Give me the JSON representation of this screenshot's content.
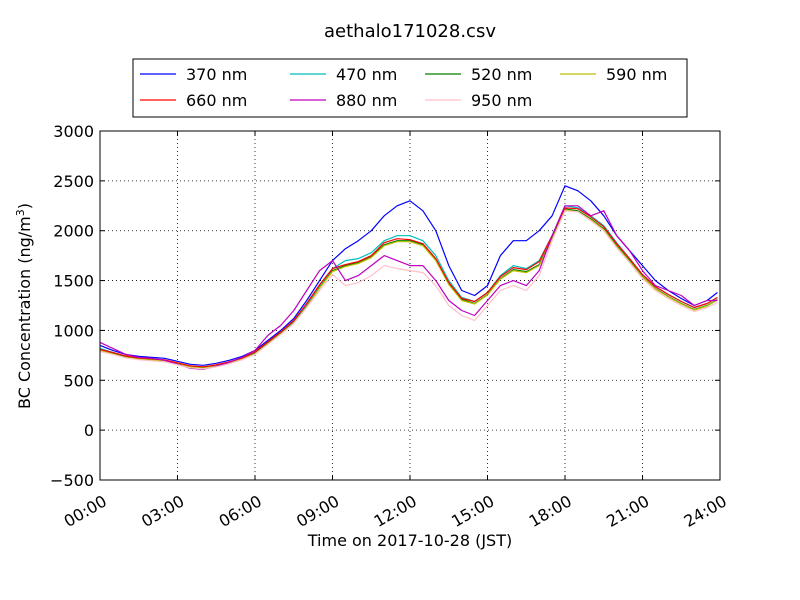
{
  "chart_data": {
    "type": "line",
    "title": "aethalo171028.csv",
    "xlabel": "Time on 2017-10-28 (JST)",
    "ylabel": "BC Concentration (ng/m³)",
    "ylabel_base": "BC Concentration (ng/m",
    "ylabel_sup": "3",
    "ylabel_end": ")",
    "x_unit": "hours",
    "xlim": [
      0,
      24
    ],
    "ylim": [
      -500,
      3000
    ],
    "grid": true,
    "legend_position": "top-center",
    "legend_columns": 4,
    "x_ticks": [
      0,
      3,
      6,
      9,
      12,
      15,
      18,
      21,
      24
    ],
    "x_tick_labels": [
      "00:00",
      "03:00",
      "06:00",
      "09:00",
      "12:00",
      "15:00",
      "18:00",
      "21:00",
      "24:00"
    ],
    "y_ticks": [
      -500,
      0,
      500,
      1000,
      1500,
      2000,
      2500,
      3000
    ],
    "y_tick_labels": [
      "−500",
      "0",
      "500",
      "1000",
      "1500",
      "2000",
      "2500",
      "3000"
    ],
    "x": [
      0,
      0.5,
      1,
      1.5,
      2,
      2.5,
      3,
      3.5,
      4,
      4.5,
      5,
      5.5,
      6,
      6.5,
      7,
      7.5,
      8,
      8.5,
      9,
      9.5,
      10,
      10.5,
      11,
      11.5,
      12,
      12.5,
      13,
      13.5,
      14,
      14.5,
      15,
      15.5,
      16,
      16.5,
      17,
      17.5,
      18,
      18.5,
      19,
      19.5,
      20,
      20.5,
      21,
      21.5,
      22,
      22.5,
      23,
      23.5,
      23.9
    ],
    "series": [
      {
        "name": "370 nm",
        "color": "#0000ff",
        "values": [
          850,
          800,
          760,
          740,
          730,
          720,
          690,
          660,
          650,
          670,
          700,
          740,
          800,
          900,
          1000,
          1120,
          1300,
          1500,
          1700,
          1820,
          1900,
          2000,
          2150,
          2250,
          2300,
          2200,
          2000,
          1650,
          1400,
          1350,
          1450,
          1750,
          1900,
          1900,
          2000,
          2150,
          2450,
          2400,
          2300,
          2150,
          1950,
          1800,
          1650,
          1500,
          1400,
          1320,
          1250,
          1300,
          1380
        ]
      },
      {
        "name": "470 nm",
        "color": "#00bfbf",
        "values": [
          820,
          780,
          740,
          720,
          710,
          700,
          670,
          640,
          630,
          650,
          680,
          720,
          780,
          880,
          980,
          1090,
          1260,
          1450,
          1620,
          1700,
          1720,
          1780,
          1900,
          1950,
          1950,
          1900,
          1750,
          1500,
          1330,
          1290,
          1380,
          1550,
          1650,
          1620,
          1700,
          1950,
          2250,
          2230,
          2150,
          2050,
          1880,
          1720,
          1560,
          1440,
          1360,
          1290,
          1230,
          1270,
          1330
        ]
      },
      {
        "name": "520 nm",
        "color": "#008000",
        "values": [
          810,
          770,
          735,
          715,
          705,
          695,
          665,
          635,
          625,
          645,
          675,
          715,
          770,
          870,
          970,
          1080,
          1240,
          1430,
          1600,
          1650,
          1680,
          1740,
          1860,
          1900,
          1900,
          1860,
          1710,
          1470,
          1310,
          1270,
          1360,
          1520,
          1610,
          1590,
          1660,
          1920,
          2220,
          2200,
          2120,
          2020,
          1850,
          1700,
          1540,
          1420,
          1340,
          1270,
          1210,
          1250,
          1310
        ]
      },
      {
        "name": "590 nm",
        "color": "#bfbf00",
        "values": [
          800,
          765,
          730,
          712,
          702,
          692,
          662,
          632,
          622,
          642,
          672,
          712,
          765,
          865,
          965,
          1075,
          1235,
          1425,
          1590,
          1640,
          1670,
          1730,
          1850,
          1890,
          1890,
          1850,
          1700,
          1460,
          1300,
          1265,
          1355,
          1515,
          1600,
          1580,
          1650,
          1910,
          2210,
          2190,
          2110,
          2010,
          1840,
          1690,
          1535,
          1415,
          1335,
          1265,
          1205,
          1245,
          1305
        ]
      },
      {
        "name": "660 nm",
        "color": "#ff0000",
        "values": [
          810,
          780,
          745,
          725,
          715,
          705,
          675,
          645,
          635,
          655,
          685,
          725,
          785,
          885,
          985,
          1100,
          1270,
          1460,
          1620,
          1660,
          1690,
          1750,
          1880,
          1920,
          1910,
          1870,
          1720,
          1480,
          1320,
          1290,
          1380,
          1540,
          1630,
          1610,
          1690,
          1950,
          2230,
          2220,
          2140,
          2040,
          1870,
          1720,
          1560,
          1440,
          1360,
          1290,
          1230,
          1270,
          1330
        ]
      },
      {
        "name": "880 nm",
        "color": "#bf00bf",
        "values": [
          880,
          820,
          760,
          730,
          720,
          700,
          660,
          620,
          610,
          640,
          680,
          730,
          800,
          950,
          1050,
          1200,
          1400,
          1600,
          1700,
          1500,
          1550,
          1650,
          1750,
          1700,
          1650,
          1650,
          1500,
          1300,
          1200,
          1150,
          1300,
          1450,
          1500,
          1450,
          1600,
          1950,
          2250,
          2250,
          2150,
          2200,
          1950,
          1800,
          1600,
          1450,
          1400,
          1350,
          1250,
          1300,
          1300
        ]
      },
      {
        "name": "950 nm",
        "color": "#ffc0cb",
        "values": [
          790,
          760,
          725,
          705,
          695,
          685,
          655,
          625,
          615,
          635,
          665,
          705,
          760,
          860,
          960,
          1070,
          1230,
          1400,
          1560,
          1450,
          1480,
          1550,
          1650,
          1620,
          1600,
          1580,
          1450,
          1250,
          1150,
          1100,
          1250,
          1400,
          1450,
          1400,
          1550,
          1900,
          2200,
          2190,
          2100,
          2000,
          1830,
          1680,
          1520,
          1400,
          1320,
          1250,
          1190,
          1230,
          1280
        ]
      }
    ]
  }
}
